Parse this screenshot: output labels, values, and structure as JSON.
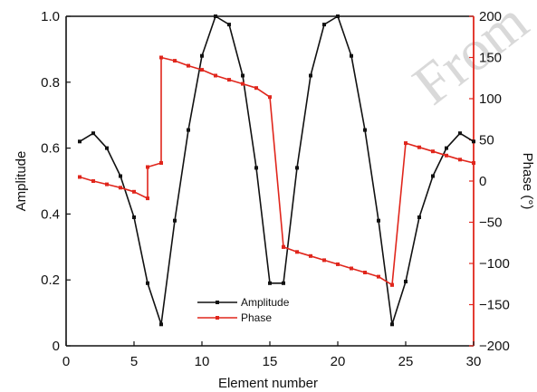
{
  "chart_data": {
    "type": "line",
    "title": "",
    "xlabel": "Element number",
    "ylabel": "Amplitude",
    "y2label": "Phase (°)",
    "xlim": [
      0,
      30
    ],
    "ylim": [
      0,
      1.0
    ],
    "y2lim": [
      -200,
      200
    ],
    "x_ticks": [
      0,
      5,
      10,
      15,
      20,
      25,
      30
    ],
    "y_ticks": [
      0,
      0.2,
      0.4,
      0.6,
      0.8,
      1.0
    ],
    "y_tick_labels": [
      "0",
      "0.2",
      "0.4",
      "0.6",
      "0.8",
      "1.0"
    ],
    "y2_ticks": [
      -200,
      -150,
      -100,
      -50,
      0,
      50,
      100,
      150,
      200
    ],
    "y2_tick_labels": [
      "−200",
      "−150",
      "−100",
      "−50",
      "0",
      "50",
      "100",
      "150",
      "200"
    ],
    "grid": false,
    "legend_position": "bottom-center",
    "watermark": "From",
    "series": [
      {
        "name": "Amplitude",
        "axis": "left",
        "color": "#111111",
        "marker": "square",
        "x": [
          1,
          2,
          3,
          4,
          5,
          6,
          7,
          8,
          9,
          10,
          11,
          12,
          13,
          14,
          15,
          16,
          17,
          18,
          19,
          20,
          21,
          22,
          23,
          24,
          25,
          26,
          27,
          28,
          29,
          30
        ],
        "values": [
          0.62,
          0.645,
          0.6,
          0.515,
          0.39,
          0.19,
          0.065,
          0.38,
          0.655,
          0.88,
          1.0,
          0.975,
          0.82,
          0.54,
          0.19,
          0.19,
          0.54,
          0.82,
          0.975,
          1.0,
          0.88,
          0.655,
          0.38,
          0.065,
          0.195,
          0.39,
          0.515,
          0.6,
          0.645,
          0.62
        ]
      },
      {
        "name": "Phase",
        "axis": "right",
        "color": "#e0261c",
        "marker": "square",
        "x": [
          1,
          2,
          3,
          4,
          5,
          6,
          6,
          7,
          7,
          8,
          9,
          10,
          11,
          12,
          13,
          14,
          15,
          16,
          16,
          17,
          18,
          19,
          20,
          21,
          22,
          23,
          24,
          24,
          25,
          26,
          27,
          28,
          29,
          30
        ],
        "values": [
          5,
          0,
          -4,
          -8,
          -13,
          -21,
          17,
          22,
          150,
          146,
          140,
          135,
          128,
          123,
          118,
          113,
          102,
          -80,
          -80,
          -86,
          -91,
          -96,
          -101,
          -106,
          -111,
          -116,
          -126,
          -126,
          46,
          41,
          36,
          31,
          26,
          22
        ]
      }
    ]
  }
}
